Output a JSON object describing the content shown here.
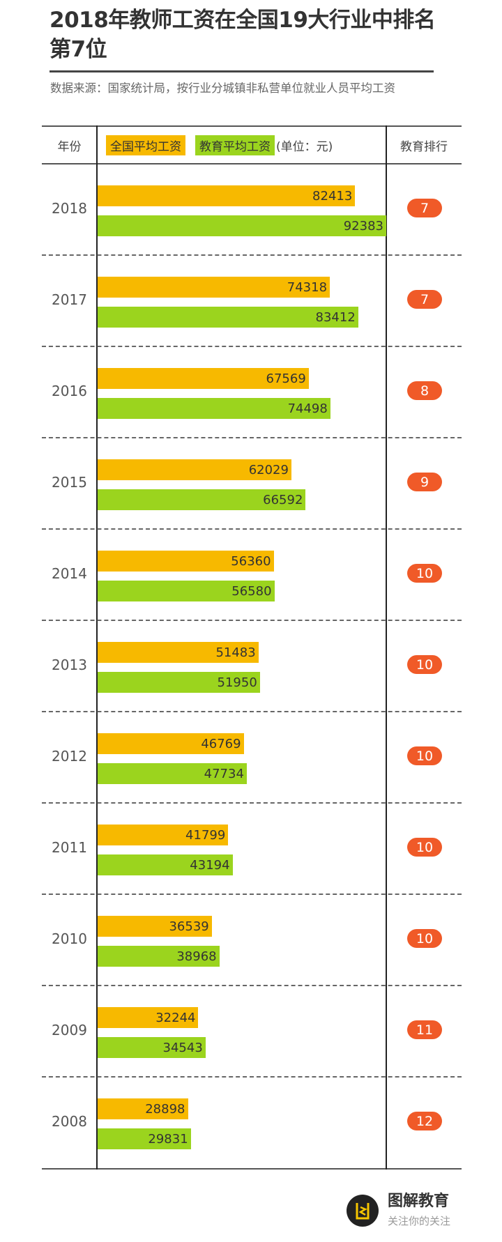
{
  "title": "2018年教师工资在全国19大行业中排名第7位",
  "source": "数据来源：国家统计局，按行业分城镇非私营单位就业人员平均工资",
  "footer": {
    "brand": "图解教育",
    "slogan": "关注你的关注",
    "logo_icon": "tujie-logo-icon"
  },
  "chart_data": {
    "type": "bar",
    "orientation": "horizontal",
    "title": "2018年教师工资在全国19大行业中排名第7位",
    "header": {
      "year": "年份",
      "unit": "(单位：元)",
      "rank": "教育排行"
    },
    "categories": [
      "2018",
      "2017",
      "2016",
      "2015",
      "2014",
      "2013",
      "2012",
      "2011",
      "2010",
      "2009",
      "2008"
    ],
    "series": [
      {
        "name": "全国平均工资",
        "color": "#f7b900",
        "values": [
          82413,
          74318,
          67569,
          62029,
          56360,
          51483,
          46769,
          41799,
          36539,
          32244,
          28898
        ]
      },
      {
        "name": "教育平均工资",
        "color": "#9bd41e",
        "values": [
          92383,
          83412,
          74498,
          66592,
          56580,
          51950,
          47734,
          43194,
          38968,
          34543,
          29831
        ]
      }
    ],
    "rank": [
      7,
      7,
      8,
      9,
      10,
      10,
      10,
      10,
      10,
      11,
      12
    ],
    "rank_color": "#f05a28",
    "xlim": [
      0,
      92383
    ]
  }
}
